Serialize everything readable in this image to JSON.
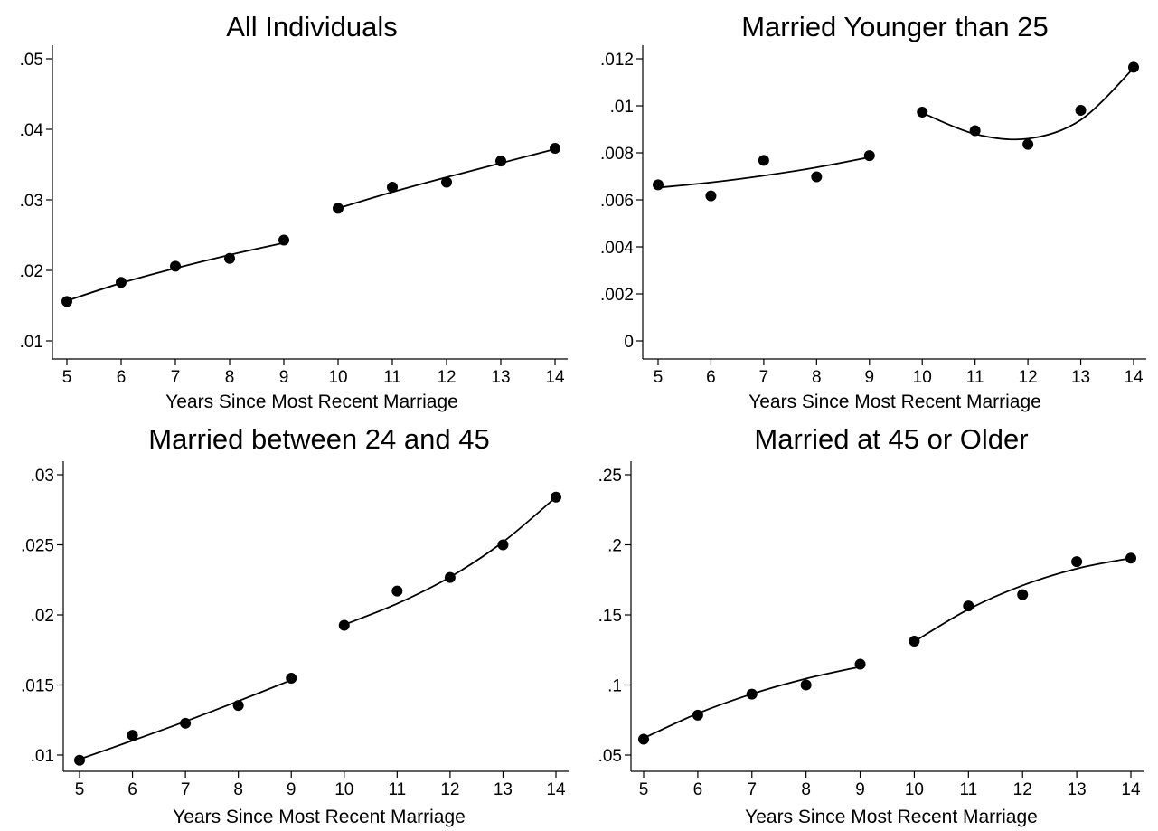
{
  "chart_data": [
    {
      "type": "scatter",
      "title": "All Individuals",
      "xlabel": "Years Since Most Recent Marriage",
      "ylabel": "",
      "x_ticks": [
        "5",
        "6",
        "7",
        "8",
        "9",
        "10",
        "11",
        "12",
        "13",
        "14"
      ],
      "xlim": [
        5,
        14
      ],
      "ylim": [
        0.01,
        0.05
      ],
      "y_ticks": [
        {
          "value": 0.01,
          "label": ".01"
        },
        {
          "value": 0.02,
          "label": ".02"
        },
        {
          "value": 0.03,
          "label": ".03"
        },
        {
          "value": 0.04,
          "label": ".04"
        },
        {
          "value": 0.05,
          "label": ".05"
        }
      ],
      "grid": false,
      "series": [
        {
          "x": [
            5,
            6,
            7,
            8,
            9,
            10,
            11,
            12,
            13,
            14
          ],
          "y": [
            0.0156,
            0.0183,
            0.0206,
            0.0217,
            0.0243,
            0.0288,
            0.0318,
            0.0325,
            0.0355,
            0.0373
          ]
        }
      ],
      "fit_lines": [
        {
          "x": [
            5,
            6,
            7,
            8,
            9
          ],
          "y": [
            0.0157,
            0.0182,
            0.0203,
            0.0222,
            0.0239
          ]
        },
        {
          "x": [
            10,
            11,
            12,
            13,
            14
          ],
          "y": [
            0.0288,
            0.0311,
            0.0332,
            0.0352,
            0.0372
          ]
        }
      ]
    },
    {
      "type": "scatter",
      "title": "Married Younger than 25",
      "xlabel": "Years Since Most Recent Marriage",
      "ylabel": "",
      "x_ticks": [
        "5",
        "6",
        "7",
        "8",
        "9",
        "10",
        "11",
        "12",
        "13",
        "14"
      ],
      "xlim": [
        5,
        14
      ],
      "ylim": [
        0,
        0.012
      ],
      "y_ticks": [
        {
          "value": 0,
          "label": "0"
        },
        {
          "value": 0.002,
          "label": ".002"
        },
        {
          "value": 0.004,
          "label": ".004"
        },
        {
          "value": 0.006,
          "label": ".006"
        },
        {
          "value": 0.008,
          "label": ".008"
        },
        {
          "value": 0.01,
          "label": ".01"
        },
        {
          "value": 0.012,
          "label": ".012"
        }
      ],
      "grid": false,
      "series": [
        {
          "x": [
            5,
            6,
            7,
            8,
            9,
            10,
            11,
            12,
            13,
            14
          ],
          "y": [
            0.00664,
            0.00617,
            0.00768,
            0.00698,
            0.00788,
            0.00973,
            0.00894,
            0.00836,
            0.00981,
            0.01164
          ]
        }
      ],
      "fit_lines": [
        {
          "x": [
            5,
            6,
            7,
            8,
            9
          ],
          "y": [
            0.00652,
            0.00674,
            0.00703,
            0.00738,
            0.00781
          ]
        },
        {
          "x": [
            10,
            11,
            12,
            13,
            14
          ],
          "y": [
            0.0097,
            0.0088,
            0.0086,
            0.0094,
            0.0116
          ]
        }
      ]
    },
    {
      "type": "scatter",
      "title": "Married between 24 and 45",
      "xlabel": "Years Since Most Recent Marriage",
      "ylabel": "",
      "x_ticks": [
        "5",
        "6",
        "7",
        "8",
        "9",
        "10",
        "11",
        "12",
        "13",
        "14"
      ],
      "xlim": [
        5,
        14
      ],
      "ylim": [
        0.01,
        0.03
      ],
      "y_ticks": [
        {
          "value": 0.01,
          "label": ".01"
        },
        {
          "value": 0.015,
          "label": ".015"
        },
        {
          "value": 0.02,
          "label": ".02"
        },
        {
          "value": 0.025,
          "label": ".025"
        },
        {
          "value": 0.03,
          "label": ".03"
        }
      ],
      "grid": false,
      "series": [
        {
          "x": [
            5,
            6,
            7,
            8,
            9,
            10,
            11,
            12,
            13,
            14
          ],
          "y": [
            0.00963,
            0.01141,
            0.01227,
            0.01354,
            0.01548,
            0.01926,
            0.0217,
            0.02267,
            0.025,
            0.0284
          ]
        }
      ],
      "fit_lines": [
        {
          "x": [
            5,
            6,
            7,
            8,
            9
          ],
          "y": [
            0.0097,
            0.01103,
            0.0124,
            0.01385,
            0.01535
          ]
        },
        {
          "x": [
            10,
            11,
            12,
            13,
            14
          ],
          "y": [
            0.0193,
            0.0208,
            0.0227,
            0.0252,
            0.0284
          ]
        }
      ]
    },
    {
      "type": "scatter",
      "title": "Married at 45 or Older",
      "xlabel": "Years Since Most Recent Marriage",
      "ylabel": "",
      "x_ticks": [
        "5",
        "6",
        "7",
        "8",
        "9",
        "10",
        "11",
        "12",
        "13",
        "14"
      ],
      "xlim": [
        5,
        14
      ],
      "ylim": [
        0.05,
        0.25
      ],
      "y_ticks": [
        {
          "value": 0.05,
          "label": ".05"
        },
        {
          "value": 0.1,
          "label": ".1"
        },
        {
          "value": 0.15,
          "label": ".15"
        },
        {
          "value": 0.2,
          "label": ".2"
        },
        {
          "value": 0.25,
          "label": ".25"
        }
      ],
      "grid": false,
      "series": [
        {
          "x": [
            5,
            6,
            7,
            8,
            9,
            10,
            11,
            12,
            13,
            14
          ],
          "y": [
            0.0613,
            0.0785,
            0.0935,
            0.1,
            0.1148,
            0.1313,
            0.1564,
            0.1644,
            0.188,
            0.1905
          ]
        }
      ],
      "fit_lines": [
        {
          "x": [
            5,
            6,
            7,
            8,
            9
          ],
          "y": [
            0.062,
            0.0797,
            0.0936,
            0.1045,
            0.113
          ]
        },
        {
          "x": [
            10,
            11,
            12,
            13,
            14
          ],
          "y": [
            0.131,
            0.154,
            0.171,
            0.183,
            0.1905
          ]
        }
      ]
    }
  ]
}
